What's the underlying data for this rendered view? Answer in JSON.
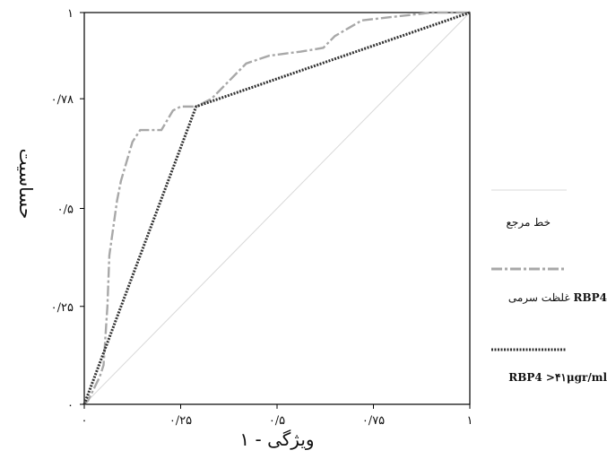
{
  "chart_data": {
    "type": "line",
    "xlabel": "ویژگی - ۱",
    "ylabel": "حساسیت",
    "xlim": [
      0,
      1
    ],
    "ylim": [
      0,
      1
    ],
    "x_tick_labels": [
      "۰",
      "۰/۲۵",
      "۰/۵",
      "۰/۷۵",
      "۱"
    ],
    "y_tick_labels": [
      "۰",
      "۰/۲۵",
      "۰/۵",
      "۰/۷۸",
      "۱"
    ],
    "grid": false,
    "legend_position": "right",
    "series": [
      {
        "name": "خط مرجع",
        "color": "#d8d8d8",
        "style": "solid-thin",
        "points": [
          [
            0,
            0
          ],
          [
            1,
            1
          ]
        ]
      },
      {
        "name_prefix": "غلظت سرمی",
        "name_suffix": "RBP4",
        "color": "#a8a8a8",
        "style": "dash-dot",
        "points": [
          [
            0,
            0
          ],
          [
            0.01,
            0.01
          ],
          [
            0.02,
            0.03
          ],
          [
            0.03,
            0.05
          ],
          [
            0.04,
            0.07
          ],
          [
            0.05,
            0.1
          ],
          [
            0.06,
            0.25
          ],
          [
            0.065,
            0.38
          ],
          [
            0.075,
            0.45
          ],
          [
            0.085,
            0.52
          ],
          [
            0.095,
            0.57
          ],
          [
            0.11,
            0.62
          ],
          [
            0.125,
            0.67
          ],
          [
            0.145,
            0.7
          ],
          [
            0.175,
            0.7
          ],
          [
            0.2,
            0.7
          ],
          [
            0.23,
            0.75
          ],
          [
            0.25,
            0.76
          ],
          [
            0.29,
            0.76
          ],
          [
            0.33,
            0.78
          ],
          [
            0.38,
            0.83
          ],
          [
            0.42,
            0.87
          ],
          [
            0.48,
            0.89
          ],
          [
            0.56,
            0.9
          ],
          [
            0.62,
            0.91
          ],
          [
            0.65,
            0.94
          ],
          [
            0.72,
            0.98
          ],
          [
            0.9,
            1.0
          ],
          [
            1,
            1
          ]
        ]
      },
      {
        "name": "RBP4 >۴۱μgr/ml",
        "color": "#333333",
        "style": "dotted",
        "points": [
          [
            0,
            0
          ],
          [
            0.29,
            0.76
          ],
          [
            1,
            1
          ]
        ]
      }
    ]
  }
}
